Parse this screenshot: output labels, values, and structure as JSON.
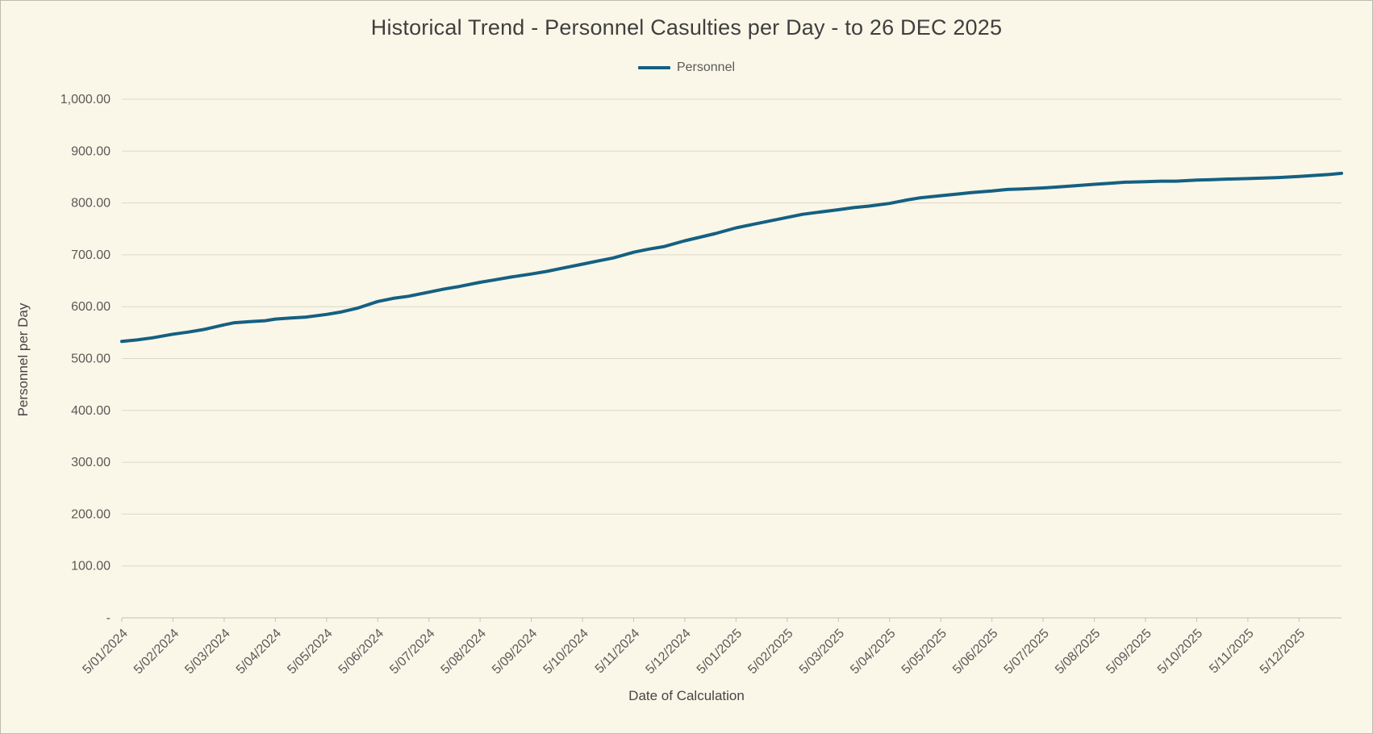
{
  "colors": {
    "background": "#FBF7E8",
    "line": "#156082",
    "grid": "#DCD8C9",
    "axis": "#C6C2B2",
    "tick_text": "#595959",
    "title_text": "#3F3F3F"
  },
  "chart_data": {
    "type": "line",
    "title": "Historical Trend - Personnel Casulties per Day - to 26 DEC 2025",
    "xlabel": "Date of Calculation",
    "ylabel": "Personnel per Day",
    "legend": [
      "Personnel"
    ],
    "legend_position": "top",
    "grid": true,
    "ylim": [
      0,
      1000
    ],
    "y_tick_labels": [
      "1,000.00",
      "900.00",
      "800.00",
      "700.00",
      "600.00",
      "500.00",
      "400.00",
      "300.00",
      "200.00",
      "100.00",
      "-"
    ],
    "categories": [
      "5/01/2024",
      "5/02/2024",
      "5/03/2024",
      "5/04/2024",
      "5/05/2024",
      "5/06/2024",
      "5/07/2024",
      "5/08/2024",
      "5/09/2024",
      "5/10/2024",
      "5/11/2024",
      "5/12/2024",
      "5/01/2025",
      "5/02/2025",
      "5/03/2025",
      "5/04/2025",
      "5/05/2025",
      "5/06/2025",
      "5/07/2025",
      "5/08/2025",
      "5/09/2025",
      "5/10/2025",
      "5/11/2025",
      "5/12/2025"
    ],
    "x_span_months": 23.83,
    "series": [
      {
        "name": "Personnel",
        "monthly_values": [
          533,
          547,
          565,
          576,
          585,
          610,
          628,
          647,
          663,
          682,
          705,
          727,
          752,
          772,
          787,
          799,
          814,
          823,
          829,
          836,
          841,
          844,
          847,
          851
        ],
        "points": [
          [
            0.0,
            533
          ],
          [
            0.3,
            536
          ],
          [
            0.6,
            540
          ],
          [
            1.0,
            547
          ],
          [
            1.3,
            551
          ],
          [
            1.6,
            556
          ],
          [
            2.0,
            565
          ],
          [
            2.2,
            569
          ],
          [
            2.5,
            571
          ],
          [
            2.8,
            573
          ],
          [
            3.0,
            576
          ],
          [
            3.3,
            578
          ],
          [
            3.6,
            580
          ],
          [
            4.0,
            585
          ],
          [
            4.3,
            590
          ],
          [
            4.6,
            597
          ],
          [
            5.0,
            610
          ],
          [
            5.3,
            616
          ],
          [
            5.6,
            620
          ],
          [
            6.0,
            628
          ],
          [
            6.3,
            634
          ],
          [
            6.6,
            639
          ],
          [
            7.0,
            647
          ],
          [
            7.3,
            652
          ],
          [
            7.6,
            657
          ],
          [
            8.0,
            663
          ],
          [
            8.3,
            668
          ],
          [
            8.6,
            674
          ],
          [
            9.0,
            682
          ],
          [
            9.3,
            688
          ],
          [
            9.6,
            694
          ],
          [
            10.0,
            705
          ],
          [
            10.3,
            711
          ],
          [
            10.6,
            716
          ],
          [
            11.0,
            727
          ],
          [
            11.3,
            734
          ],
          [
            11.6,
            741
          ],
          [
            12.0,
            752
          ],
          [
            12.3,
            758
          ],
          [
            12.6,
            764
          ],
          [
            13.0,
            772
          ],
          [
            13.3,
            778
          ],
          [
            13.6,
            782
          ],
          [
            14.0,
            787
          ],
          [
            14.3,
            791
          ],
          [
            14.6,
            794
          ],
          [
            15.0,
            799
          ],
          [
            15.3,
            805
          ],
          [
            15.6,
            810
          ],
          [
            16.0,
            814
          ],
          [
            16.3,
            817
          ],
          [
            16.6,
            820
          ],
          [
            17.0,
            823
          ],
          [
            17.3,
            826
          ],
          [
            17.6,
            827
          ],
          [
            18.0,
            829
          ],
          [
            18.3,
            831
          ],
          [
            18.6,
            833
          ],
          [
            19.0,
            836
          ],
          [
            19.3,
            838
          ],
          [
            19.6,
            840
          ],
          [
            20.0,
            841
          ],
          [
            20.3,
            842
          ],
          [
            20.6,
            842
          ],
          [
            21.0,
            844
          ],
          [
            21.3,
            845
          ],
          [
            21.6,
            846
          ],
          [
            22.0,
            847
          ],
          [
            22.3,
            848
          ],
          [
            22.6,
            849
          ],
          [
            23.0,
            851
          ],
          [
            23.3,
            853
          ],
          [
            23.6,
            855
          ],
          [
            23.83,
            857
          ]
        ]
      }
    ]
  }
}
